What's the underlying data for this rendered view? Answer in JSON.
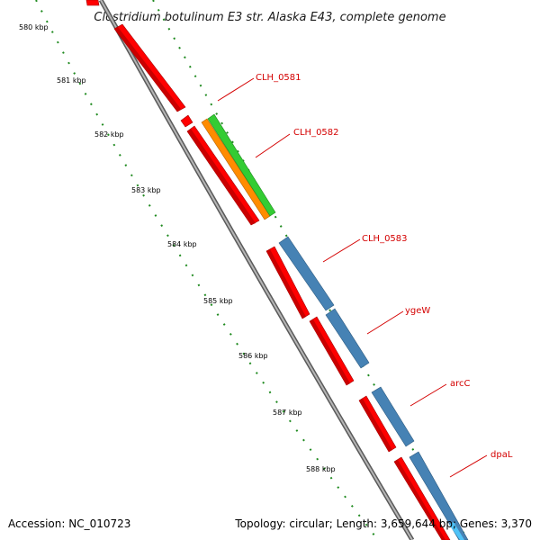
{
  "title": "Clostridium botulinum E3 str. Alaska E43, complete genome",
  "accession": "Accession: NC_010723",
  "summary": "Topology: circular; Length: 3,659,644 bp; Genes: 3,370",
  "colors": {
    "backbone": "#8c8c8c",
    "cds_red": "#ff0000",
    "blue": "#4682b4",
    "orange": "#ff8c00",
    "green": "#33cc33",
    "tick": "#1f8a1f",
    "label": "#d40000"
  },
  "scale_labels": [
    "580 kbp",
    "581 kbp",
    "582 kbp",
    "583 kbp",
    "584 kbp",
    "585 kbp",
    "586 kbp",
    "587 kbp",
    "588 kbp"
  ],
  "gene_labels": [
    "CLH_0581",
    "CLH_0582",
    "CLH_0583",
    "ygeW",
    "arcC",
    "dpaL"
  ]
}
